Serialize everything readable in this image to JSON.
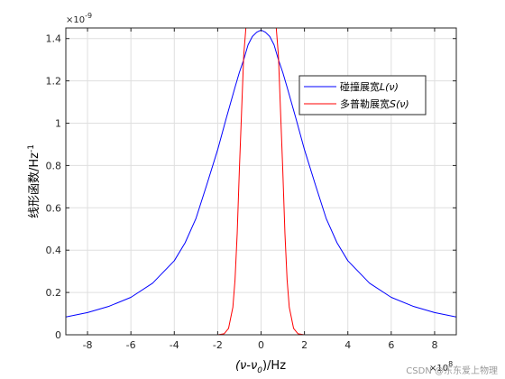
{
  "chart_data": {
    "type": "line",
    "title": "",
    "xlabel": "(ν-ν0)/Hz",
    "ylabel": "线形函数/Hz-1",
    "x_multiplier": "×10^8",
    "y_multiplier": "×10^-9",
    "xlim": [
      -900000000.0,
      900000000.0
    ],
    "ylim": [
      0,
      1.45e-09
    ],
    "x_ticks": [
      -800000000.0,
      -600000000.0,
      -400000000.0,
      -200000000.0,
      0,
      200000000.0,
      400000000.0,
      600000000.0,
      800000000.0
    ],
    "x_tick_labels": [
      "-8",
      "-6",
      "-4",
      "-2",
      "0",
      "2",
      "4",
      "6",
      "8"
    ],
    "y_ticks": [
      0,
      2e-10,
      4e-10,
      6e-10,
      8e-10,
      1e-09,
      1.2e-09,
      1.4e-09
    ],
    "y_tick_labels": [
      "0",
      "0.2",
      "0.4",
      "0.6",
      "0.8",
      "1",
      "1.2",
      "1.4"
    ],
    "grid": true,
    "legend_position": "top-right",
    "series": [
      {
        "name": "碰撞展宽L(ν)",
        "color": "#0000ff",
        "x": [
          -900000000.0,
          -800000000.0,
          -700000000.0,
          -600000000.0,
          -500000000.0,
          -400000000.0,
          -350000000.0,
          -300000000.0,
          -250000000.0,
          -200000000.0,
          -160000000.0,
          -120000000.0,
          -100000000.0,
          -80000000.0,
          -60000000.0,
          -40000000.0,
          -20000000.0,
          0,
          20000000.0,
          40000000.0,
          60000000.0,
          80000000.0,
          100000000.0,
          120000000.0,
          160000000.0,
          200000000.0,
          250000000.0,
          300000000.0,
          350000000.0,
          400000000.0,
          500000000.0,
          600000000.0,
          700000000.0,
          800000000.0,
          900000000.0
        ],
        "y": [
          8.4e-11,
          1.05e-10,
          1.35e-10,
          1.77e-10,
          2.44e-10,
          3.5e-10,
          4.35e-10,
          5.5e-10,
          7.1e-10,
          8.75e-10,
          1.025e-09,
          1.17e-09,
          1.24e-09,
          1.3e-09,
          1.37e-09,
          1.41e-09,
          1.43e-09,
          1.44e-09,
          1.43e-09,
          1.41e-09,
          1.37e-09,
          1.3e-09,
          1.24e-09,
          1.17e-09,
          1.025e-09,
          8.75e-10,
          7.1e-10,
          5.5e-10,
          4.35e-10,
          3.5e-10,
          2.44e-10,
          1.77e-10,
          1.35e-10,
          1.05e-10,
          8.4e-11
        ]
      },
      {
        "name": "多普勒展宽S(ν)",
        "color": "#ff0000",
        "x": [
          -900000000.0,
          -200000000.0,
          -170000000.0,
          -150000000.0,
          -130000000.0,
          -120000000.0,
          -110000000.0,
          -100000000.0,
          -90000000.0,
          -80000000.0,
          -70000000.0,
          -60000000.0,
          60000000.0,
          70000000.0,
          80000000.0,
          90000000.0,
          100000000.0,
          110000000.0,
          120000000.0,
          130000000.0,
          150000000.0,
          170000000.0,
          200000000.0,
          900000000.0
        ],
        "y": [
          0,
          0,
          5e-12,
          3e-11,
          1.3e-10,
          2.6e-10,
          4.8e-10,
          7.8e-10,
          1.05e-09,
          1.32e-09,
          1.45e-09,
          1.45e-09,
          1.45e-09,
          1.45e-09,
          1.32e-09,
          1.05e-09,
          7.8e-10,
          4.8e-10,
          2.6e-10,
          1.3e-10,
          3e-11,
          5e-12,
          0,
          0
        ]
      }
    ]
  },
  "labels": {
    "x_sci_base": "×10",
    "x_sci_exp": "8",
    "y_sci_base": "×10",
    "y_sci_exp": "-9",
    "x_label_main": "(ν-ν",
    "x_label_sub": "0",
    "x_label_tail": ")/Hz",
    "y_label_main": "线形函数/Hz",
    "y_label_sup": "-1",
    "legend_1_prefix": "碰撞展宽",
    "legend_1_func": "L",
    "legend_1_arg": "(ν)",
    "legend_2_prefix": "多普勒展宽",
    "legend_2_func": "S",
    "legend_2_arg": "(ν)",
    "watermark": "CSDN @东东爱上物理"
  }
}
